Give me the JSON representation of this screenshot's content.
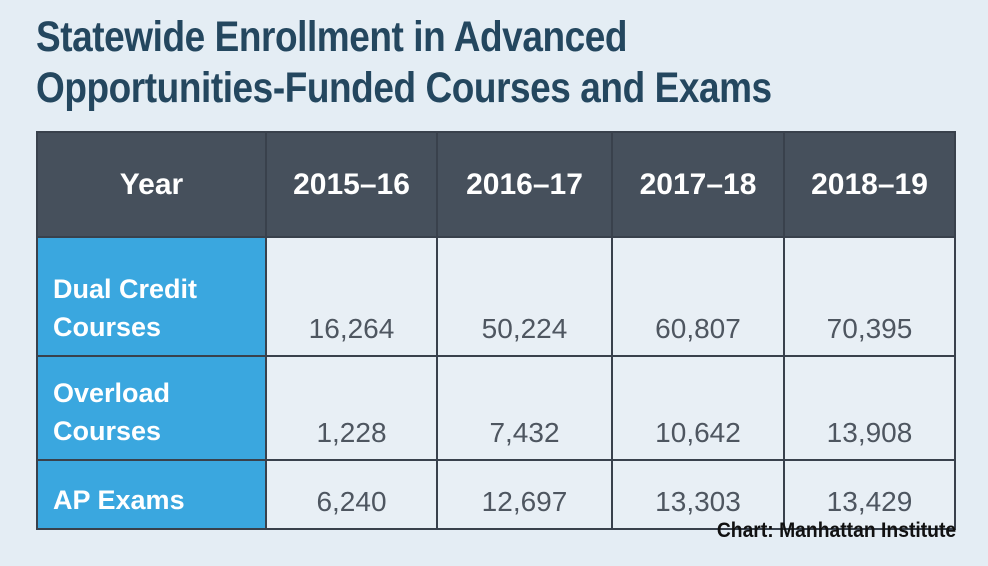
{
  "title_lines": [
    "Statewide Enrollment in Advanced",
    "Opportunities-Funded Courses and Exams"
  ],
  "source": "Chart: Manhattan Institute",
  "colors": {
    "background": "#e4edf4",
    "title": "#24475f",
    "header_bg": "#46505c",
    "row_label_bg": "#3aa7df",
    "cell_bg": "#e8eff5",
    "border": "#39414c"
  },
  "chart_data": {
    "type": "table",
    "title": "Statewide Enrollment in Advanced Opportunities-Funded Courses and Exams",
    "header": "Year",
    "columns": [
      "2015–16",
      "2016–17",
      "2017–18",
      "2018–19"
    ],
    "rows": [
      {
        "label_lines": [
          "Dual Credit",
          "Courses"
        ],
        "values": [
          "16,264",
          "50,224",
          "60,807",
          "70,395"
        ]
      },
      {
        "label_lines": [
          "Overload",
          "Courses"
        ],
        "values": [
          "1,228",
          "7,432",
          "10,642",
          "13,908"
        ]
      },
      {
        "label_lines": [
          "AP Exams"
        ],
        "values": [
          "6,240",
          "12,697",
          "13,303",
          "13,429"
        ]
      }
    ]
  }
}
